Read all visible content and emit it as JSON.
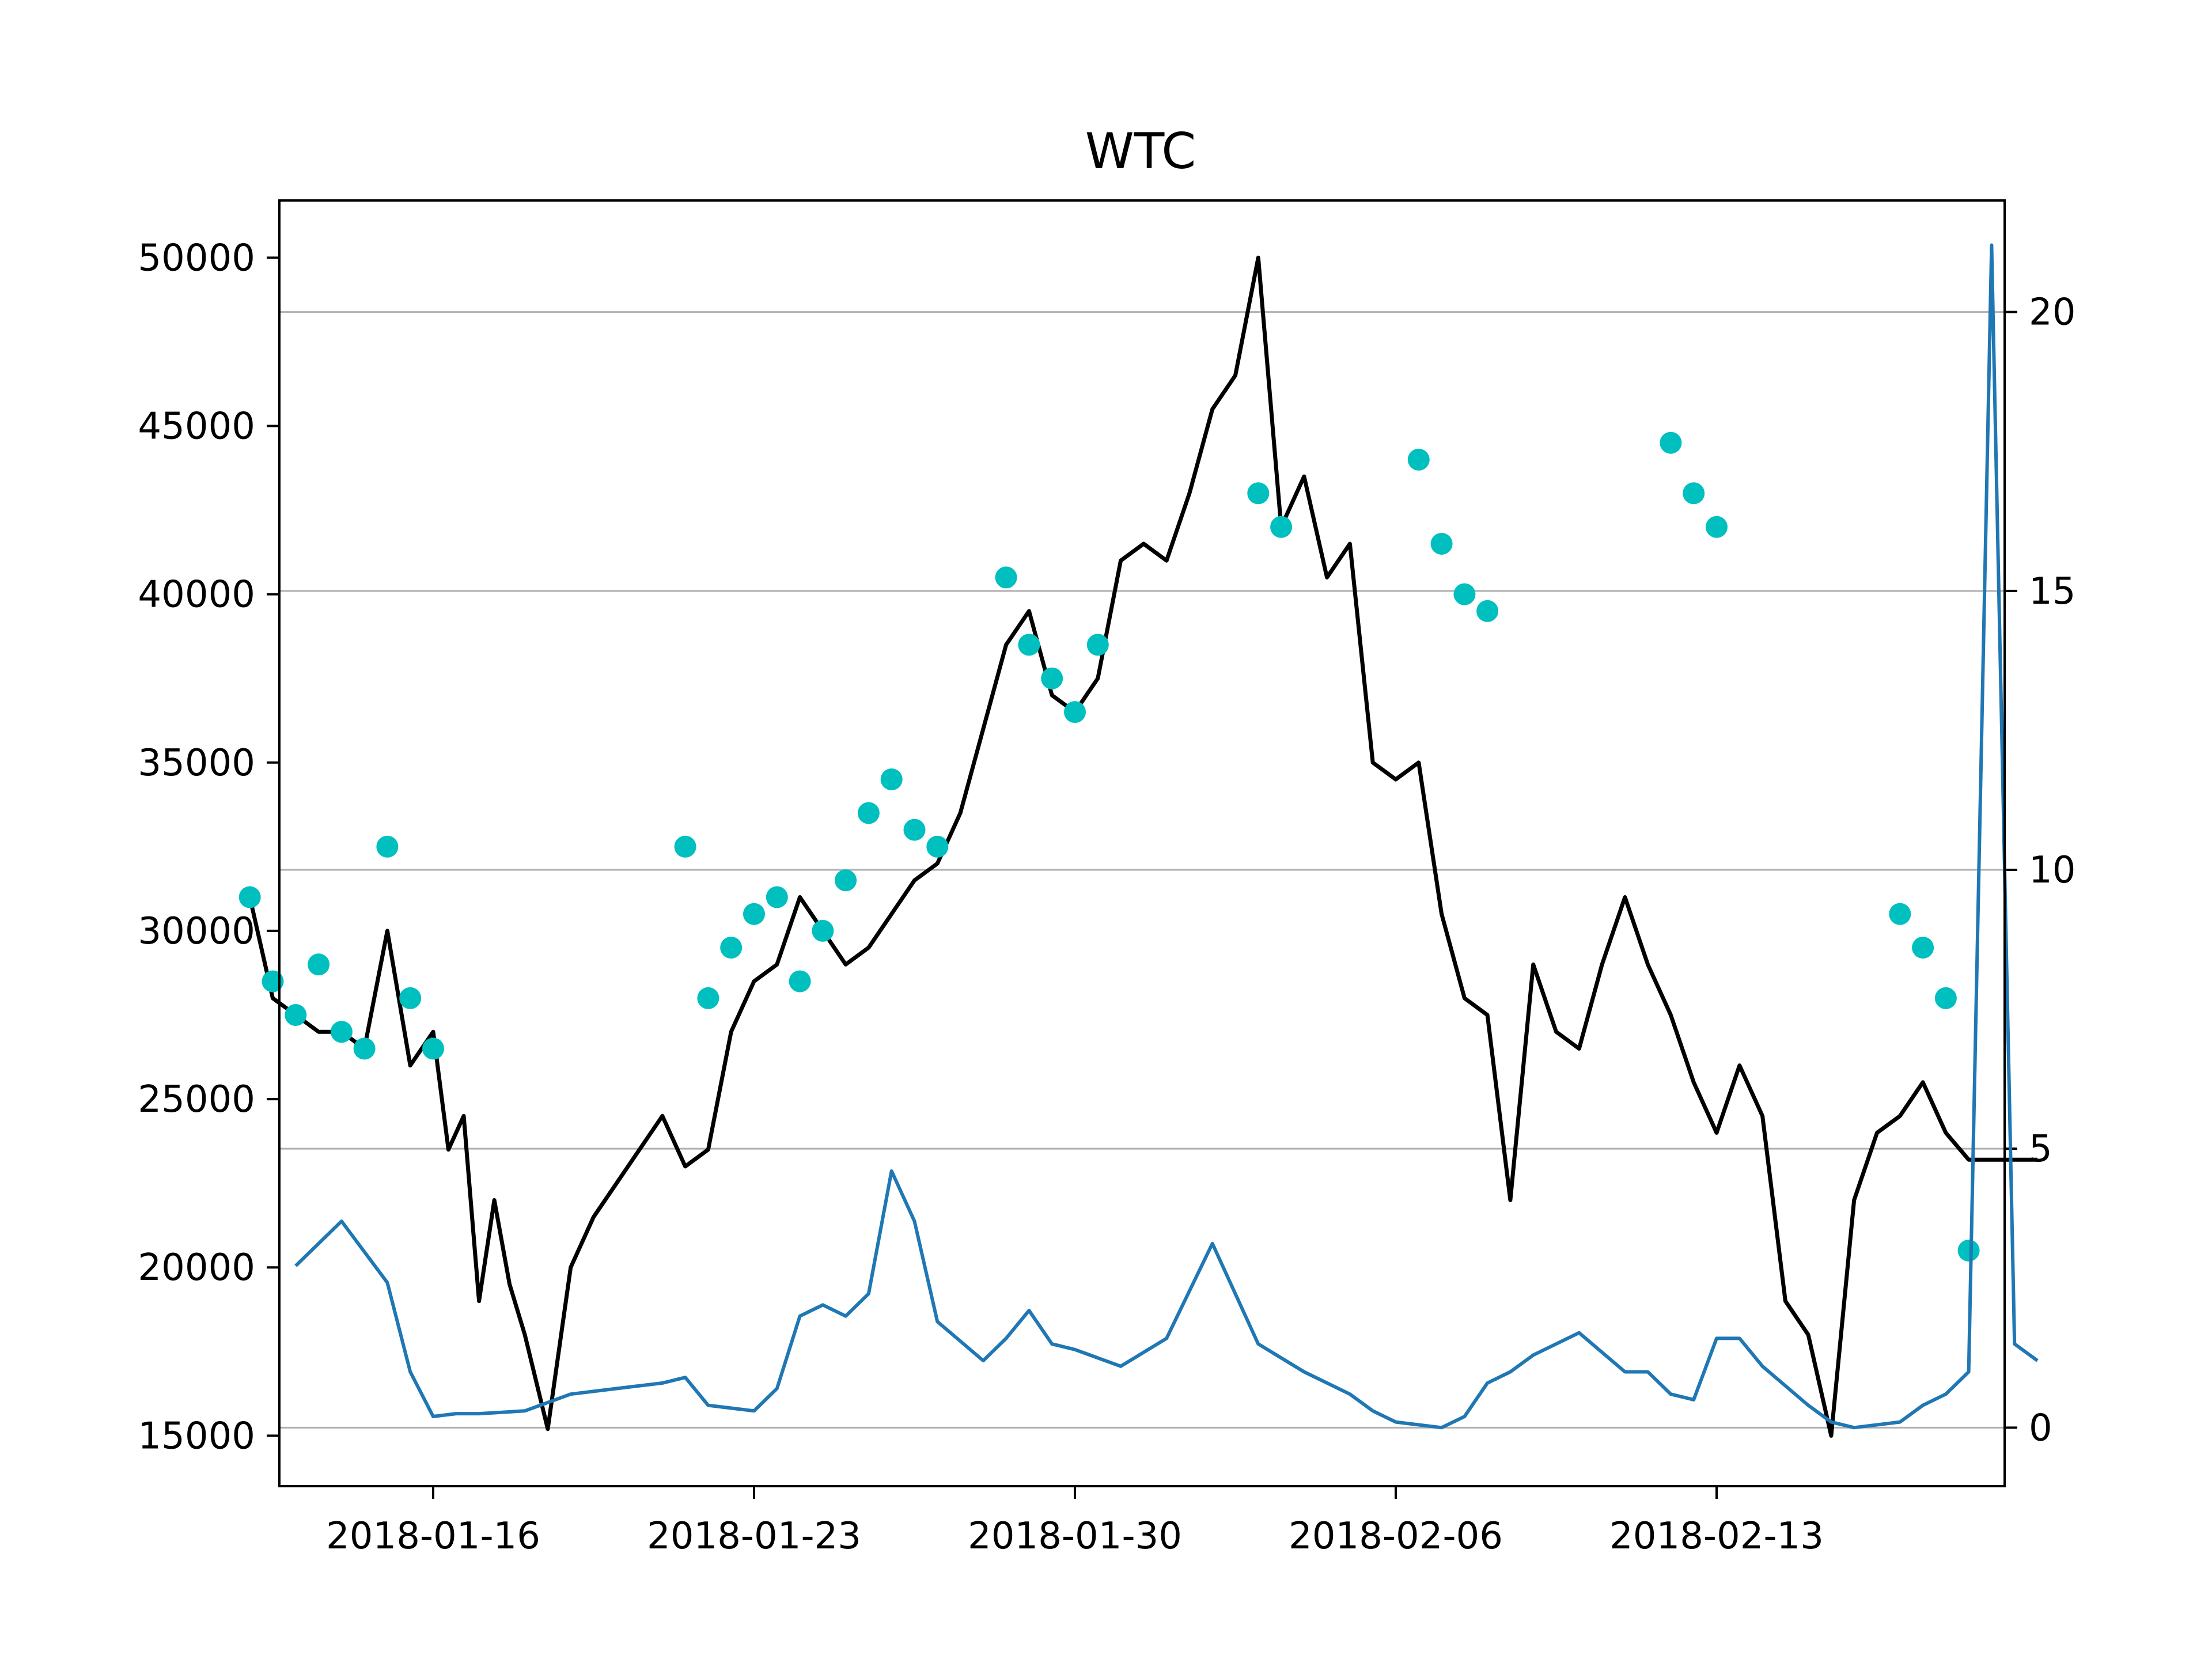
{
  "chart_data": {
    "type": "line",
    "title": "WTC",
    "xlabel": "",
    "ylabel": "",
    "x_ticks": [
      "2018-01-16",
      "2018-01-23",
      "2018-01-30",
      "2018-02-06",
      "2018-02-13"
    ],
    "left_ylim": [
      13500,
      51700
    ],
    "left_yticks": [
      15000,
      20000,
      25000,
      30000,
      35000,
      40000,
      45000,
      50000
    ],
    "right_ylim": [
      -1.05,
      22
    ],
    "right_yticks": [
      0,
      5,
      10,
      15,
      20
    ],
    "grid": "horizontal, right axis",
    "colors": {
      "price": "#000000",
      "markers": "#00bfbf",
      "indicator": "#1f77b4",
      "grid": "#b0b0b0"
    },
    "series": [
      {
        "axis": "left",
        "style": "line",
        "x": [
          "2018-01-12",
          "2018-01-12T12:00",
          "2018-01-13",
          "2018-01-13T12:00",
          "2018-01-14",
          "2018-01-14T12:00",
          "2018-01-15",
          "2018-01-15T12:00",
          "2018-01-16",
          "2018-01-16T08:00",
          "2018-01-16T16:00",
          "2018-01-17",
          "2018-01-17T08:00",
          "2018-01-17T16:00",
          "2018-01-18",
          "2018-01-18T12:00",
          "2018-01-19",
          "2018-01-19T12:00",
          "2018-01-20",
          "2018-01-20T12:00",
          "2018-01-21",
          "2018-01-21T12:00",
          "2018-01-22",
          "2018-01-22T12:00",
          "2018-01-23",
          "2018-01-23T12:00",
          "2018-01-24",
          "2018-01-24T12:00",
          "2018-01-25",
          "2018-01-25T12:00",
          "2018-01-26",
          "2018-01-26T12:00",
          "2018-01-27",
          "2018-01-27T12:00",
          "2018-01-28",
          "2018-01-28T12:00",
          "2018-01-29",
          "2018-01-29T12:00",
          "2018-01-30",
          "2018-01-30T12:00",
          "2018-01-31",
          "2018-01-31T12:00",
          "2018-02-01",
          "2018-02-01T12:00",
          "2018-02-02",
          "2018-02-02T12:00",
          "2018-02-03",
          "2018-02-03T12:00",
          "2018-02-04",
          "2018-02-04T12:00",
          "2018-02-05",
          "2018-02-05T12:00",
          "2018-02-06",
          "2018-02-06T12:00",
          "2018-02-07",
          "2018-02-07T12:00",
          "2018-02-08",
          "2018-02-08T12:00",
          "2018-02-09",
          "2018-02-09T12:00",
          "2018-02-10",
          "2018-02-10T12:00",
          "2018-02-11",
          "2018-02-11T12:00",
          "2018-02-12",
          "2018-02-12T12:00",
          "2018-02-13",
          "2018-02-13T12:00",
          "2018-02-14",
          "2018-02-14T12:00",
          "2018-02-15",
          "2018-02-15T12:00",
          "2018-02-16",
          "2018-02-16T12:00",
          "2018-02-17",
          "2018-02-17T12:00",
          "2018-02-18",
          "2018-02-18T12:00",
          "2018-02-19",
          "2018-02-19T12:00",
          "2018-02-20"
        ],
        "y": [
          31000,
          28000,
          27500,
          27000,
          27000,
          26500,
          30000,
          26000,
          27000,
          23500,
          24500,
          19000,
          22000,
          19500,
          18000,
          15200,
          20000,
          21500,
          22500,
          23500,
          24500,
          23000,
          23500,
          27000,
          28500,
          29000,
          31000,
          30000,
          29000,
          29500,
          30500,
          31500,
          32000,
          33500,
          36000,
          38500,
          39500,
          37000,
          36500,
          37500,
          41000,
          41500,
          41000,
          43000,
          45500,
          46500,
          50000,
          42000,
          43500,
          40500,
          41500,
          35000,
          34500,
          35000,
          30500,
          28000,
          27500,
          22000,
          29000,
          27000,
          26500,
          29000,
          31000,
          29000,
          27500,
          25500,
          24000,
          26000,
          24500,
          19000,
          18000,
          15000,
          22000,
          24000,
          24500,
          25500,
          24000,
          23200,
          23200,
          23200,
          23200
        ]
      },
      {
        "axis": "left",
        "style": "markers",
        "x": [
          "2018-01-12",
          "2018-01-12T12:00",
          "2018-01-13",
          "2018-01-13T12:00",
          "2018-01-14",
          "2018-01-14T12:00",
          "2018-01-15",
          "2018-01-15T12:00",
          "2018-01-16",
          "2018-01-21T12:00",
          "2018-01-22",
          "2018-01-22T12:00",
          "2018-01-23",
          "2018-01-23T12:00",
          "2018-01-24",
          "2018-01-24T12:00",
          "2018-01-25",
          "2018-01-25T12:00",
          "2018-01-26",
          "2018-01-26T12:00",
          "2018-01-27",
          "2018-01-28T12:00",
          "2018-01-29",
          "2018-01-29T12:00",
          "2018-01-30",
          "2018-01-30T12:00",
          "2018-02-03",
          "2018-02-03T12:00",
          "2018-02-06T12:00",
          "2018-02-07",
          "2018-02-07T12:00",
          "2018-02-08",
          "2018-02-12",
          "2018-02-12T12:00",
          "2018-02-13",
          "2018-02-17",
          "2018-02-17T12:00",
          "2018-02-18",
          "2018-02-18T12:00"
        ],
        "y": [
          31000,
          28500,
          27500,
          29000,
          27000,
          26500,
          32500,
          28000,
          26500,
          32500,
          28000,
          29500,
          30500,
          31000,
          28500,
          30000,
          31500,
          33500,
          34500,
          33000,
          32500,
          40500,
          38500,
          37500,
          36500,
          38500,
          43000,
          42000,
          44000,
          41500,
          40000,
          39500,
          44500,
          43000,
          42000,
          30500,
          29500,
          28000,
          20500
        ]
      },
      {
        "axis": "right",
        "style": "line",
        "x": [
          "2018-01-13",
          "2018-01-14",
          "2018-01-15",
          "2018-01-15T12:00",
          "2018-01-16",
          "2018-01-16T12:00",
          "2018-01-17",
          "2018-01-18",
          "2018-01-19",
          "2018-01-20",
          "2018-01-21",
          "2018-01-21T12:00",
          "2018-01-22",
          "2018-01-23",
          "2018-01-23T12:00",
          "2018-01-24",
          "2018-01-24T12:00",
          "2018-01-25",
          "2018-01-25T12:00",
          "2018-01-26",
          "2018-01-26T12:00",
          "2018-01-27",
          "2018-01-28",
          "2018-01-28T12:00",
          "2018-01-29",
          "2018-01-29T12:00",
          "2018-01-30",
          "2018-01-31",
          "2018-02-01",
          "2018-02-02",
          "2018-02-03",
          "2018-02-04",
          "2018-02-05",
          "2018-02-05T12:00",
          "2018-02-06",
          "2018-02-07",
          "2018-02-07T12:00",
          "2018-02-08",
          "2018-02-08T12:00",
          "2018-02-09",
          "2018-02-10",
          "2018-02-11",
          "2018-02-11T12:00",
          "2018-02-12",
          "2018-02-12T12:00",
          "2018-02-13",
          "2018-02-13T12:00",
          "2018-02-14",
          "2018-02-15",
          "2018-02-15T12:00",
          "2018-02-16",
          "2018-02-17",
          "2018-02-17T12:00",
          "2018-02-18",
          "2018-02-18T12:00",
          "2018-02-19",
          "2018-02-19T12:00",
          "2018-02-20"
        ],
        "y": [
          2.9,
          3.7,
          2.6,
          1.0,
          0.2,
          0.25,
          0.25,
          0.3,
          0.6,
          0.7,
          0.8,
          0.9,
          0.4,
          0.3,
          0.7,
          2.0,
          2.2,
          2.0,
          2.4,
          4.6,
          3.7,
          1.9,
          1.2,
          1.6,
          2.1,
          1.5,
          1.4,
          1.1,
          1.6,
          3.3,
          1.5,
          1.0,
          0.6,
          0.3,
          0.1,
          0.0,
          0.2,
          0.8,
          1.0,
          1.3,
          1.7,
          1.0,
          1.0,
          0.6,
          0.5,
          1.6,
          1.6,
          1.1,
          0.4,
          0.1,
          0.0,
          0.1,
          0.4,
          0.6,
          1.0,
          21.2,
          1.5,
          1.2
        ]
      }
    ]
  }
}
